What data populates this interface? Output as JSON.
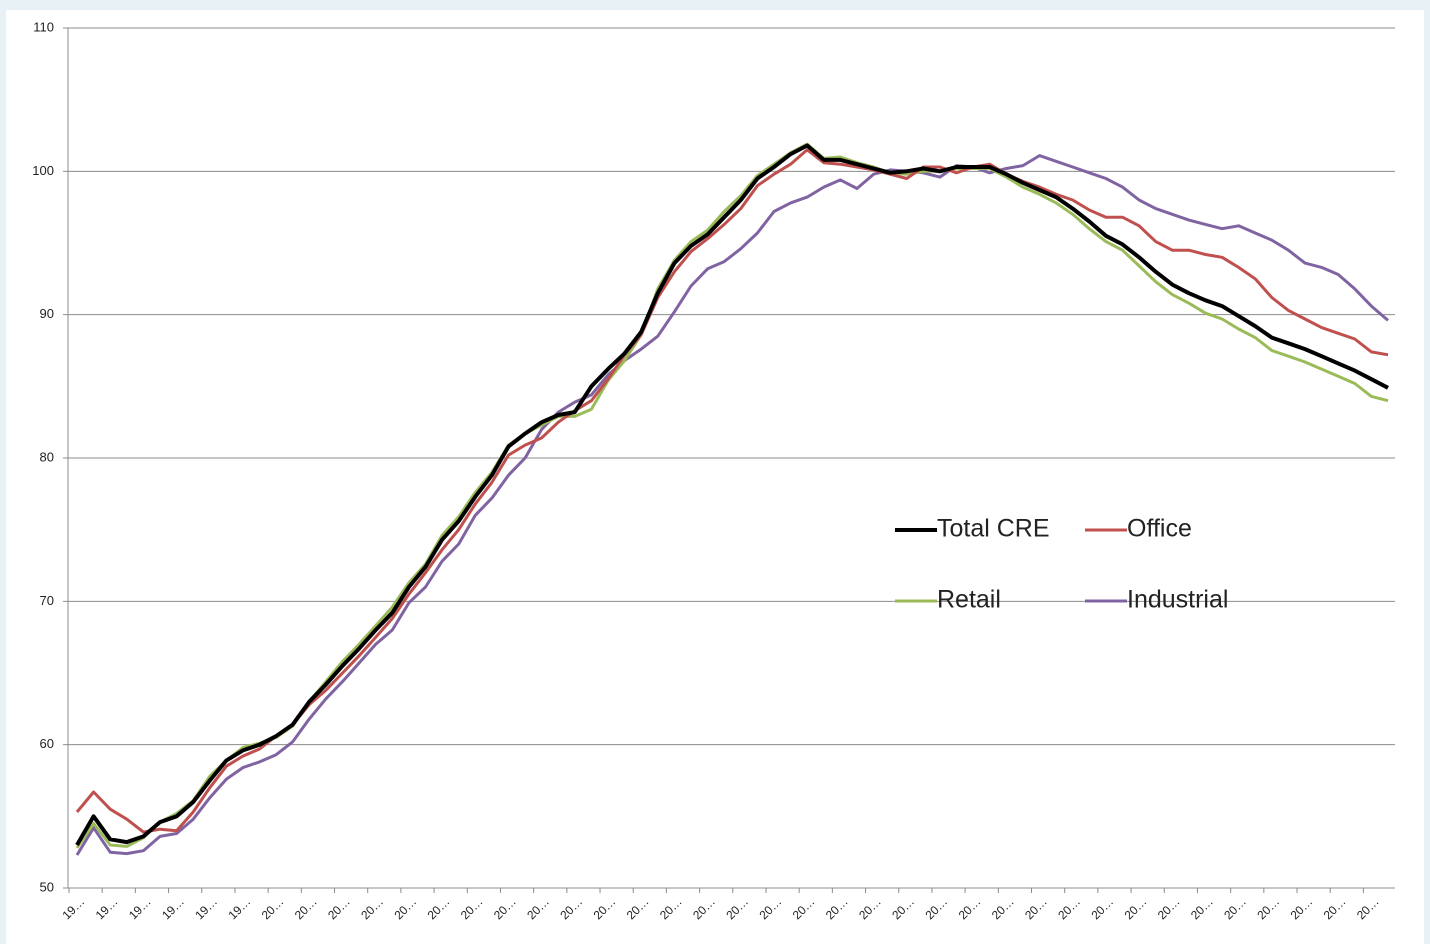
{
  "chart_data": {
    "type": "line",
    "categories": [
      "19…",
      null,
      "19…",
      null,
      "19…",
      null,
      "19…",
      null,
      "19…",
      null,
      "19…",
      null,
      "20…",
      null,
      "20…",
      null,
      "20…",
      null,
      "20…",
      null,
      "20…",
      null,
      "20…",
      null,
      "20…",
      null,
      "20…",
      null,
      "20…",
      null,
      "20…",
      null,
      "20…",
      null,
      "20…",
      null,
      "20…",
      null,
      "20…",
      null,
      "20…",
      null,
      "20…",
      null,
      "20…",
      null,
      "20…",
      null,
      "20…",
      null,
      "20…",
      null,
      "20…",
      null,
      "20…",
      null,
      "20…",
      null,
      "20…",
      null,
      "20…",
      null,
      "20…",
      null,
      "20…",
      null,
      "20…",
      null,
      "20…",
      null,
      "20…",
      null,
      "20…",
      null,
      "20…",
      null,
      "20…",
      null,
      "20…",
      null
    ],
    "ylim": [
      50,
      110
    ],
    "yticks": [
      50,
      60,
      70,
      80,
      90,
      100,
      110
    ],
    "grid": true,
    "legend": "center-right",
    "series": [
      {
        "name": "Total CRE",
        "color": "#000000",
        "values": [
          53.0,
          55.0,
          53.4,
          53.2,
          53.6,
          54.6,
          55.0,
          56.0,
          57.5,
          58.9,
          59.6,
          60.0,
          60.6,
          61.4,
          63.0,
          64.2,
          65.5,
          66.7,
          68.0,
          69.2,
          71.0,
          72.4,
          74.3,
          75.6,
          77.3,
          78.8,
          80.8,
          81.7,
          82.5,
          83.0,
          83.2,
          85.0,
          86.2,
          87.3,
          88.8,
          91.5,
          93.6,
          94.8,
          95.6,
          96.8,
          98.0,
          99.5,
          100.3,
          101.2,
          101.8,
          100.8,
          100.8,
          100.5,
          100.2,
          99.9,
          100.0,
          100.2,
          100.0,
          100.3,
          100.3,
          100.3,
          99.8,
          99.2,
          98.7,
          98.2,
          97.4,
          96.5,
          95.5,
          94.9,
          94.0,
          93.0,
          92.1,
          91.5,
          91.0,
          90.6,
          89.9,
          89.2,
          88.4,
          88.0,
          87.6,
          87.1,
          86.6,
          86.1,
          85.5,
          84.9
        ]
      },
      {
        "name": "Office",
        "color": "#c0504d",
        "values": [
          55.3,
          56.7,
          55.5,
          54.8,
          53.9,
          54.1,
          54.0,
          55.3,
          57.0,
          58.5,
          59.2,
          59.7,
          60.6,
          61.4,
          62.8,
          63.8,
          65.0,
          66.2,
          67.5,
          68.8,
          70.5,
          72.0,
          73.6,
          75.0,
          76.8,
          78.3,
          80.2,
          80.9,
          81.4,
          82.5,
          83.3,
          84.0,
          85.5,
          87.2,
          88.6,
          91.2,
          93.0,
          94.4,
          95.3,
          96.3,
          97.4,
          99.0,
          99.8,
          100.5,
          101.5,
          100.6,
          100.5,
          100.3,
          100.1,
          99.8,
          99.5,
          100.3,
          100.3,
          99.9,
          100.3,
          100.5,
          99.8,
          99.3,
          98.9,
          98.4,
          98.0,
          97.3,
          96.8,
          96.8,
          96.2,
          95.1,
          94.5,
          94.5,
          94.2,
          94.0,
          93.3,
          92.5,
          91.2,
          90.3,
          89.7,
          89.1,
          88.7,
          88.3,
          87.4,
          87.2
        ]
      },
      {
        "name": "Retail",
        "color": "#9bbb59",
        "values": [
          52.8,
          54.5,
          53.0,
          52.9,
          53.5,
          54.6,
          55.2,
          56.1,
          57.8,
          58.9,
          59.8,
          60.1,
          60.5,
          61.3,
          63.0,
          64.4,
          65.8,
          67.0,
          68.3,
          69.6,
          71.3,
          72.6,
          74.6,
          75.9,
          77.6,
          79.0,
          80.9,
          81.7,
          82.3,
          82.9,
          82.9,
          83.4,
          85.4,
          86.8,
          88.6,
          91.8,
          93.8,
          95.1,
          95.9,
          97.2,
          98.3,
          99.7,
          100.5,
          101.3,
          101.9,
          100.9,
          101.0,
          100.6,
          100.3,
          99.9,
          99.8,
          100.0,
          100.0,
          100.2,
          100.2,
          100.2,
          99.6,
          98.9,
          98.4,
          97.8,
          97.0,
          96.0,
          95.1,
          94.5,
          93.4,
          92.3,
          91.4,
          90.8,
          90.1,
          89.7,
          89.0,
          88.4,
          87.5,
          87.1,
          86.7,
          86.2,
          85.7,
          85.2,
          84.3,
          84.0
        ]
      },
      {
        "name": "Industrial",
        "color": "#8064a2",
        "values": [
          52.3,
          54.2,
          52.5,
          52.4,
          52.6,
          53.6,
          53.8,
          54.8,
          56.3,
          57.6,
          58.4,
          58.8,
          59.3,
          60.2,
          61.8,
          63.2,
          64.4,
          65.7,
          67.0,
          68.0,
          69.9,
          71.0,
          72.8,
          74.0,
          76.0,
          77.2,
          78.8,
          80.0,
          82.0,
          83.2,
          83.9,
          84.4,
          85.8,
          86.8,
          87.6,
          88.5,
          90.2,
          92.0,
          93.2,
          93.7,
          94.6,
          95.7,
          97.2,
          97.8,
          98.2,
          98.9,
          99.4,
          98.8,
          99.8,
          100.1,
          100.0,
          99.9,
          99.6,
          100.4,
          100.3,
          99.9,
          100.2,
          100.4,
          101.1,
          100.7,
          100.3,
          99.9,
          99.5,
          98.9,
          98.0,
          97.4,
          97.0,
          96.6,
          96.3,
          96.0,
          96.2,
          95.7,
          95.2,
          94.5,
          93.6,
          93.3,
          92.8,
          91.8,
          90.6,
          89.6
        ]
      }
    ]
  }
}
